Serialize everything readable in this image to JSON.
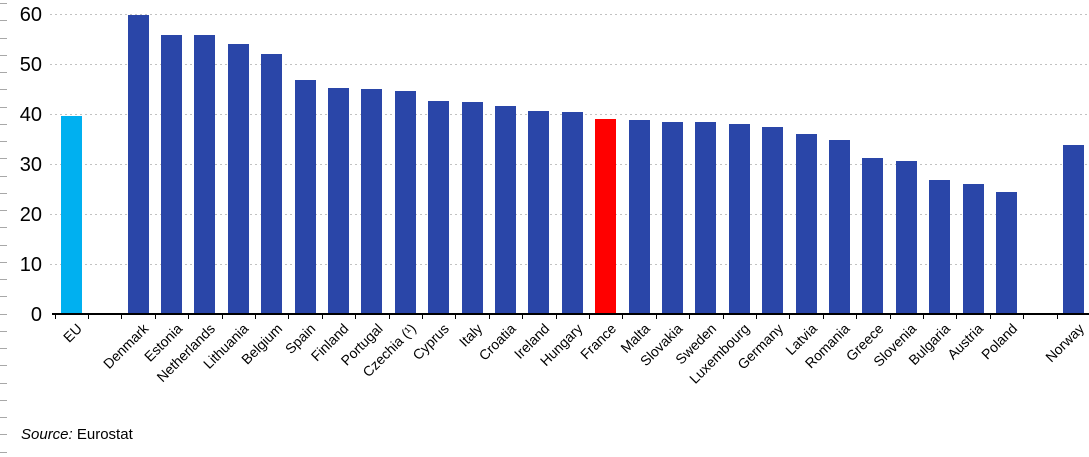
{
  "chart_data": {
    "type": "bar",
    "title": "",
    "xlabel": "",
    "ylabel": "",
    "ylim": [
      0,
      60
    ],
    "yticks": [
      0,
      10,
      20,
      30,
      40,
      50,
      60
    ],
    "grid": "horizontal dashed gridlines at each major y tick",
    "legend": "none",
    "default_bar_color": "#2a46a8",
    "highlight_colors": {
      "eu": "#00b0f0",
      "france": "#ff0000"
    },
    "axis_color": "#000000",
    "gridline_color": "#c2c2c2",
    "items": [
      {
        "label": "EU",
        "value": 39.8,
        "color": "#00b0f0"
      },
      {
        "label": "Denmark",
        "value": 60.0,
        "gap_before": true
      },
      {
        "label": "Estonia",
        "value": 56.0
      },
      {
        "label": "Netherlands",
        "value": 55.9
      },
      {
        "label": "Lithuania",
        "value": 54.2
      },
      {
        "label": "Belgium",
        "value": 52.1
      },
      {
        "label": "Spain",
        "value": 47.0
      },
      {
        "label": "Finland",
        "value": 45.3
      },
      {
        "label": "Portugal",
        "value": 45.1
      },
      {
        "label": "Czechia (¹)",
        "value": 44.7
      },
      {
        "label": "Cyprus",
        "value": 42.8
      },
      {
        "label": "Italy",
        "value": 42.6
      },
      {
        "label": "Croatia",
        "value": 41.7
      },
      {
        "label": "Ireland",
        "value": 40.7
      },
      {
        "label": "Hungary",
        "value": 40.5
      },
      {
        "label": "France",
        "value": 39.1,
        "color": "#ff0000"
      },
      {
        "label": "Malta",
        "value": 38.9
      },
      {
        "label": "Slovakia",
        "value": 38.6
      },
      {
        "label": "Sweden",
        "value": 38.5
      },
      {
        "label": "Luxembourg",
        "value": 38.1
      },
      {
        "label": "Germany",
        "value": 37.6
      },
      {
        "label": "Latvia",
        "value": 36.2
      },
      {
        "label": "Romania",
        "value": 35.0
      },
      {
        "label": "Greece",
        "value": 31.4
      },
      {
        "label": "Slovenia",
        "value": 30.8
      },
      {
        "label": "Bulgaria",
        "value": 27.0
      },
      {
        "label": "Austria",
        "value": 26.2
      },
      {
        "label": "Poland",
        "value": 24.5
      },
      {
        "label": "Norway",
        "value": 33.9,
        "gap_before": true
      }
    ]
  },
  "source": {
    "prefix": "Source:",
    "text": "Eurostat"
  }
}
